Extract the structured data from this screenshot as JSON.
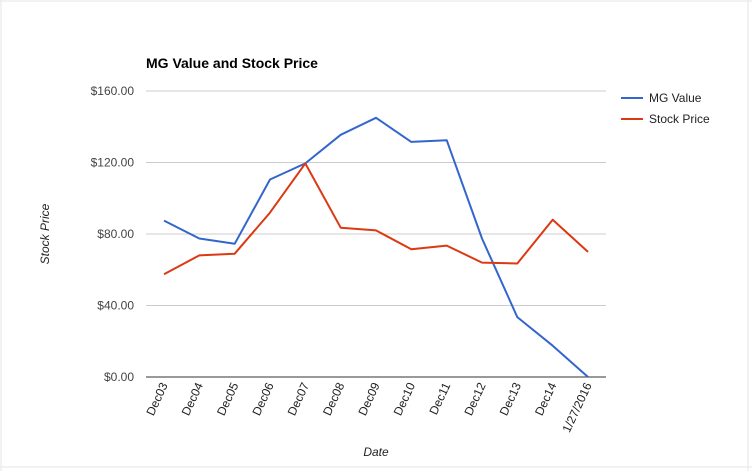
{
  "chart_data": {
    "type": "line",
    "title": "MG Value and Stock Price",
    "xlabel": "Date",
    "ylabel": "Stock Price",
    "categories": [
      "Dec03",
      "Dec04",
      "Dec05",
      "Dec06",
      "Dec07",
      "Dec08",
      "Dec09",
      "Dec10",
      "Dec11",
      "Dec12",
      "Dec13",
      "Dec14",
      "1/27/2016"
    ],
    "ylim": [
      0,
      160
    ],
    "yticks": [
      0,
      40,
      80,
      120,
      160
    ],
    "ytick_labels": [
      "$0.00",
      "$40.00",
      "$80.00",
      "$120.00",
      "$160.00"
    ],
    "grid": true,
    "legend": "right",
    "series": [
      {
        "name": "MG Value",
        "color": "#3366cc",
        "values": [
          87.5,
          77.5,
          74.5,
          110.5,
          119.5,
          135.5,
          145,
          131.5,
          132.5,
          77.5,
          33.5,
          17.5,
          0
        ]
      },
      {
        "name": "Stock Price",
        "color": "#dc3912",
        "values": [
          57.5,
          68,
          69,
          92,
          119.5,
          83.5,
          82,
          71.5,
          73.5,
          64,
          63.5,
          88,
          70
        ]
      }
    ]
  }
}
